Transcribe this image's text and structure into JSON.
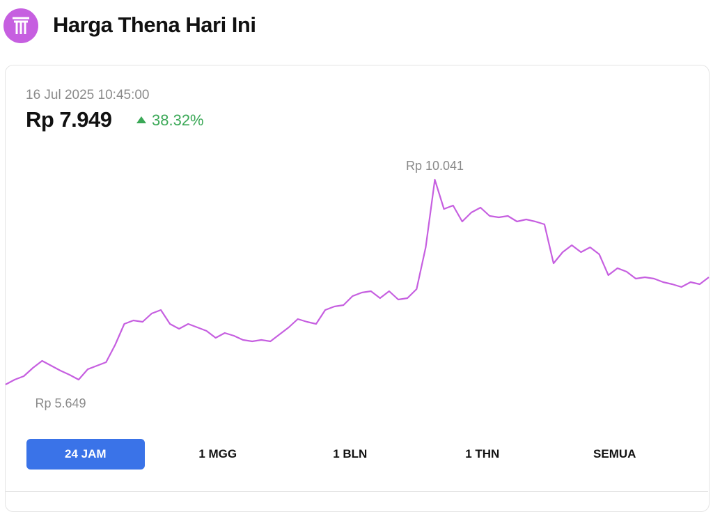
{
  "header": {
    "title": "Harga Thena Hari Ini"
  },
  "card": {
    "timestamp": "16 Jul 2025 10:45:00",
    "price": "Rp 7.949",
    "change": "38.32%"
  },
  "chart_data": {
    "type": "line",
    "color": "#c65fe0",
    "ylim": [
      5649,
      10041
    ],
    "max_label": "Rp 10.041",
    "min_label": "Rp 5.649",
    "values": [
      5649,
      5754,
      5828,
      6008,
      6157,
      6052,
      5948,
      5858,
      5754,
      5978,
      6052,
      6127,
      6501,
      6949,
      7023,
      6994,
      7173,
      7247,
      6949,
      6844,
      6949,
      6874,
      6799,
      6650,
      6754,
      6695,
      6605,
      6575,
      6605,
      6575,
      6725,
      6874,
      7053,
      6994,
      6949,
      7247,
      7322,
      7352,
      7546,
      7621,
      7651,
      7501,
      7651,
      7472,
      7501,
      7696,
      8592,
      10041,
      9414,
      9488,
      9145,
      9339,
      9443,
      9264,
      9234,
      9264,
      9145,
      9190,
      9145,
      9085,
      8248,
      8487,
      8637,
      8487,
      8592,
      8443,
      7994,
      8144,
      8069,
      7920,
      7950,
      7920,
      7845,
      7800,
      7740,
      7845,
      7800,
      7949
    ]
  },
  "tabs": [
    "24 JAM",
    "1 MGG",
    "1 BLN",
    "1 THN",
    "SEMUA"
  ],
  "active_tab": 0
}
